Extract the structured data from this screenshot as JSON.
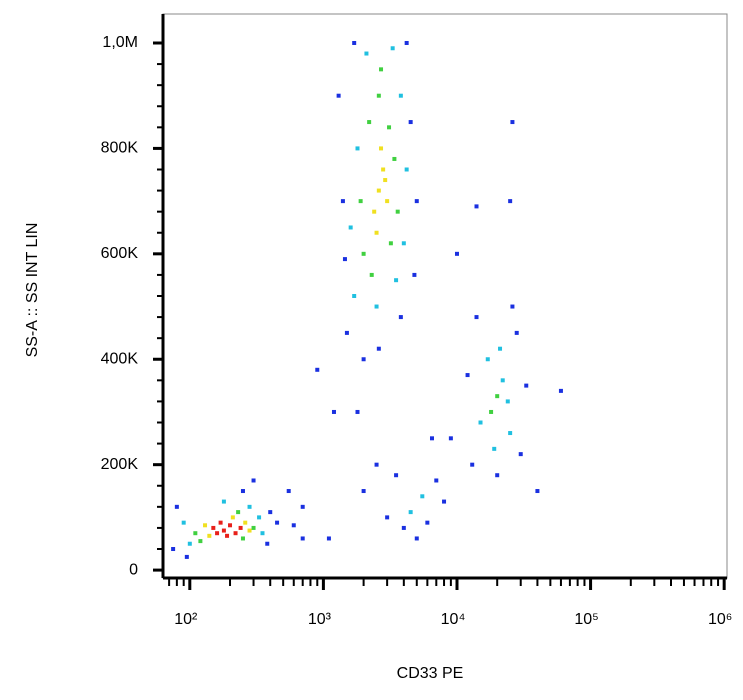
{
  "chart_data": {
    "type": "scatter",
    "xlabel": "CD33 PE",
    "ylabel": "SS-A :: SS INT LIN",
    "xscale": "log",
    "xlim": [
      63,
      1050000
    ],
    "ylim": [
      -15000,
      1055000
    ],
    "xticks": [
      {
        "value": 100,
        "label": "10²"
      },
      {
        "value": 1000,
        "label": "10³"
      },
      {
        "value": 10000,
        "label": "10⁴"
      },
      {
        "value": 100000,
        "label": "10⁵"
      },
      {
        "value": 1000000,
        "label": "10⁶"
      }
    ],
    "xminorticks": [
      70,
      80,
      90,
      200,
      300,
      400,
      500,
      600,
      700,
      800,
      900,
      2000,
      3000,
      4000,
      5000,
      6000,
      7000,
      8000,
      9000,
      20000,
      30000,
      40000,
      50000,
      60000,
      70000,
      80000,
      90000,
      200000,
      300000,
      400000,
      500000,
      600000,
      700000,
      800000,
      900000
    ],
    "yticks": [
      0,
      {
        "value": 200000,
        "label": "200K"
      },
      {
        "value": 400000,
        "label": "400K"
      },
      {
        "value": 600000,
        "label": "600K"
      },
      {
        "value": 800000,
        "label": "800K"
      },
      {
        "value": 1000000,
        "label": "1,0M"
      }
    ],
    "yminorticks": [
      40000,
      80000,
      120000,
      160000,
      240000,
      280000,
      320000,
      360000,
      440000,
      480000,
      520000,
      560000,
      640000,
      680000,
      720000,
      760000,
      840000,
      880000,
      920000,
      960000
    ],
    "series": [
      {
        "color": "#1a30e0",
        "x": [
          75,
          400,
          80,
          380,
          450,
          250,
          300,
          95,
          600,
          550,
          1500,
          4500,
          1400,
          1700,
          4200,
          3800,
          2600,
          5000,
          1300,
          4800,
          1450,
          2000,
          13000,
          30000,
          28000,
          14000,
          33000,
          20000,
          12000,
          26000,
          2000,
          3000,
          4000,
          6000,
          7000,
          2500,
          5000,
          8000,
          3500,
          6500,
          700,
          1100,
          1200,
          900,
          10000,
          14000,
          26000,
          9000,
          60000,
          40000,
          1800,
          25000,
          700
        ],
        "values": [
          40000,
          110000,
          120000,
          50000,
          90000,
          150000,
          170000,
          25000,
          85000,
          150000,
          450000,
          850000,
          700000,
          1000000,
          1000000,
          480000,
          420000,
          700000,
          900000,
          560000,
          590000,
          400000,
          200000,
          220000,
          450000,
          480000,
          350000,
          180000,
          370000,
          500000,
          150000,
          100000,
          80000,
          90000,
          170000,
          200000,
          60000,
          130000,
          180000,
          250000,
          120000,
          60000,
          300000,
          380000,
          600000,
          690000,
          850000,
          250000,
          340000,
          150000,
          300000,
          700000,
          60000
        ]
      },
      {
        "color": "#20c0e0",
        "x": [
          90,
          330,
          100,
          350,
          280,
          180,
          1700,
          3800,
          1800,
          4000,
          2100,
          3300,
          1600,
          2500,
          3500,
          4200,
          15000,
          22000,
          17000,
          25000,
          19000,
          21000,
          24000,
          4500,
          5500
        ],
        "values": [
          90000,
          100000,
          50000,
          70000,
          120000,
          130000,
          520000,
          900000,
          800000,
          620000,
          980000,
          990000,
          650000,
          500000,
          550000,
          760000,
          280000,
          360000,
          400000,
          260000,
          230000,
          420000,
          320000,
          110000,
          140000
        ]
      },
      {
        "color": "#40d040",
        "x": [
          110,
          300,
          230,
          120,
          250,
          2000,
          3400,
          2200,
          3200,
          2600,
          1900,
          3600,
          2300,
          3100,
          2700,
          20000,
          18000
        ],
        "values": [
          70000,
          80000,
          110000,
          55000,
          60000,
          600000,
          780000,
          850000,
          620000,
          900000,
          700000,
          680000,
          560000,
          840000,
          950000,
          330000,
          300000
        ]
      },
      {
        "color": "#f0e020",
        "x": [
          130,
          260,
          210,
          140,
          280,
          2600,
          2800,
          2400,
          3000,
          2700,
          2500,
          2900
        ],
        "values": [
          85000,
          90000,
          100000,
          65000,
          75000,
          720000,
          760000,
          680000,
          700000,
          800000,
          640000,
          740000
        ]
      },
      {
        "color": "#e8201a",
        "x": [
          150,
          180,
          200,
          220,
          170,
          240,
          190,
          160
        ],
        "values": [
          80000,
          75000,
          85000,
          70000,
          90000,
          80000,
          65000,
          70000
        ]
      }
    ]
  }
}
